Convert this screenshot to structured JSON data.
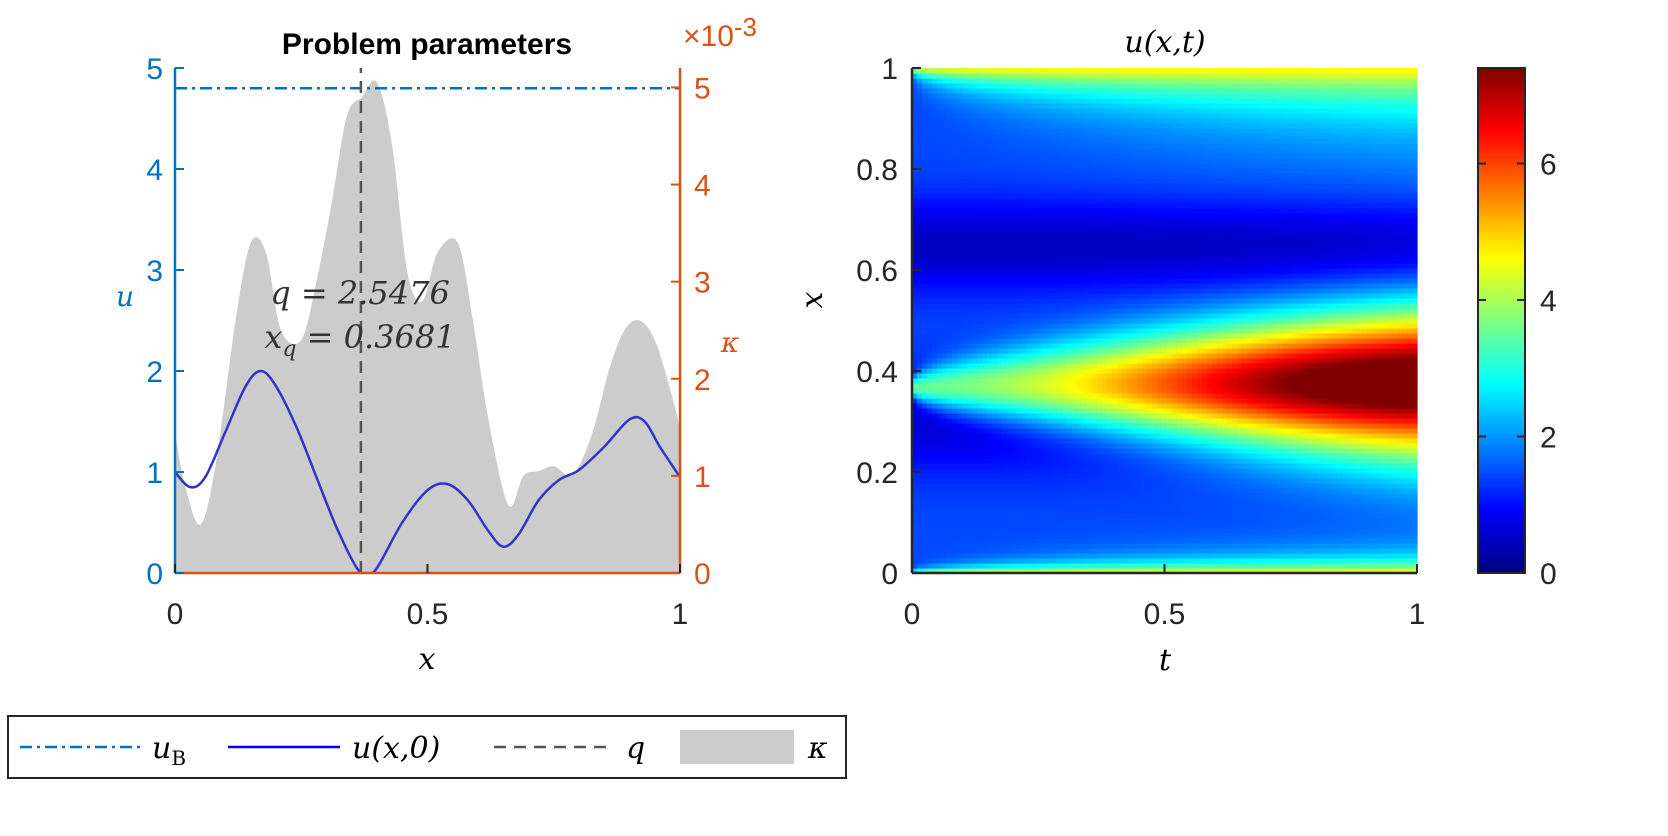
{
  "left_panel": {
    "title": "Problem parameters",
    "xlabel": "x",
    "ylabel_left": "u",
    "ylabel_right": "κ",
    "exponent_label": "×10",
    "exponent_power": "-3",
    "annotation_q": "q = 2.5476",
    "annotation_xq": "x_q = 0.3681",
    "colors": {
      "left_axis": "#0072BD",
      "right_axis": "#D95319",
      "u0": "#3333CC",
      "uB": "#0072BD",
      "q": "#555555",
      "kappa": "#CCCCCC"
    }
  },
  "right_panel": {
    "title": "u(x,t)",
    "xlabel": "t",
    "ylabel": "x",
    "colormap": "jet"
  },
  "legend": {
    "entries": [
      {
        "label": "u_B",
        "style": "dash-dot",
        "color": "#0072BD"
      },
      {
        "label": "u(x,0)",
        "style": "solid",
        "color": "#0000FF"
      },
      {
        "label": "q",
        "style": "dashed",
        "color": "#555555"
      },
      {
        "label": "κ",
        "style": "patch",
        "color": "#CCCCCC"
      }
    ]
  },
  "chart_data": [
    {
      "type": "line",
      "title": "Problem parameters",
      "xlabel": "x",
      "ylabel": "u",
      "y2label": "κ",
      "xlim": [
        0,
        1
      ],
      "ylim": [
        0,
        5
      ],
      "y2lim": [
        0,
        0.0052
      ],
      "y2_exponent": -3,
      "xticks": [
        0,
        0.5,
        1
      ],
      "xtick_labels": [
        "0",
        "0.5",
        "1"
      ],
      "yticks": [
        0,
        1,
        2,
        3,
        4,
        5
      ],
      "ytick_labels": [
        "0",
        "1",
        "2",
        "3",
        "4",
        "5"
      ],
      "y2ticks": [
        0,
        1,
        2,
        3,
        4,
        5
      ],
      "y2tick_labels": [
        "0",
        "1",
        "2",
        "3",
        "4",
        "5"
      ],
      "grid": false,
      "series": [
        {
          "name": "u_B",
          "kind": "hline",
          "y": 4.8
        },
        {
          "name": "u(x,0)",
          "kind": "line",
          "x": [
            0,
            0.03,
            0.06,
            0.1,
            0.14,
            0.17,
            0.2,
            0.24,
            0.28,
            0.32,
            0.36,
            0.38,
            0.4,
            0.45,
            0.5,
            0.54,
            0.58,
            0.62,
            0.65,
            0.68,
            0.72,
            0.76,
            0.8,
            0.85,
            0.9,
            0.93,
            0.96,
            1.0
          ],
          "y": [
            1.0,
            0.85,
            0.95,
            1.4,
            1.85,
            2.0,
            1.85,
            1.45,
            0.95,
            0.45,
            0.05,
            0.0,
            0.05,
            0.5,
            0.82,
            0.88,
            0.72,
            0.42,
            0.26,
            0.38,
            0.72,
            0.92,
            1.02,
            1.25,
            1.52,
            1.5,
            1.25,
            0.95
          ]
        },
        {
          "name": "q",
          "kind": "vline",
          "x": 0.3681
        },
        {
          "name": "κ",
          "kind": "area",
          "axis": "right",
          "x": [
            0,
            0.02,
            0.05,
            0.08,
            0.12,
            0.15,
            0.18,
            0.21,
            0.25,
            0.28,
            0.31,
            0.34,
            0.37,
            0.4,
            0.43,
            0.46,
            0.49,
            0.52,
            0.56,
            0.59,
            0.62,
            0.66,
            0.69,
            0.72,
            0.75,
            0.78,
            0.8,
            0.83,
            0.86,
            0.89,
            0.92,
            0.95,
            0.98,
            1.0
          ],
          "y": [
            0.00145,
            0.0009,
            0.0005,
            0.0011,
            0.0026,
            0.0034,
            0.0033,
            0.0025,
            0.0024,
            0.003,
            0.0038,
            0.0047,
            0.0049,
            0.00505,
            0.0044,
            0.0031,
            0.0028,
            0.0033,
            0.0034,
            0.0026,
            0.0016,
            0.0007,
            0.001,
            0.00105,
            0.0011,
            0.001,
            0.0011,
            0.0015,
            0.0021,
            0.0025,
            0.0026,
            0.0024,
            0.0019,
            0.0015
          ]
        }
      ],
      "annotations": [
        "q = 2.5476",
        "x_q = 0.3681"
      ]
    },
    {
      "type": "heatmap",
      "title": "u(x,t)",
      "xlabel": "t",
      "ylabel": "x",
      "xlim": [
        0,
        1
      ],
      "ylim": [
        0,
        1
      ],
      "xticks": [
        0,
        0.5,
        1
      ],
      "xtick_labels": [
        "0",
        "0.5",
        "1"
      ],
      "yticks": [
        0,
        0.2,
        0.4,
        0.6,
        0.8,
        1
      ],
      "ytick_labels": [
        "0",
        "0.2",
        "0.4",
        "0.6",
        "0.8",
        "1"
      ],
      "colorbar": {
        "range": [
          0,
          7.4
        ],
        "ticks": [
          0,
          2,
          4,
          6
        ],
        "tick_labels": [
          "0",
          "2",
          "4",
          "6"
        ],
        "colormap": "jet"
      },
      "boundary_value": 4.8,
      "source_x": 0.3681,
      "source_peak_at_t1": 7.4,
      "upper_blue_band_center": 0.65
    }
  ]
}
